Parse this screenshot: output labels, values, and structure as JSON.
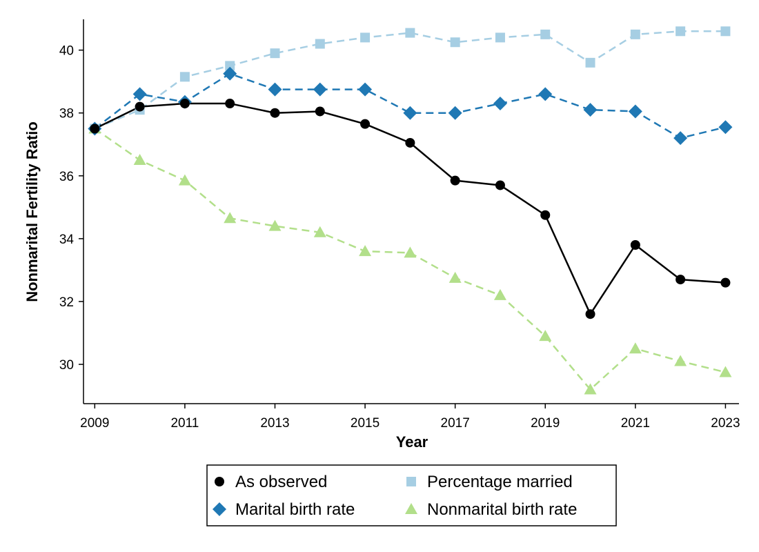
{
  "chart_data": {
    "type": "line",
    "xlabel": "Year",
    "ylabel": "Nonmarital Fertility Ratio",
    "x": [
      2009,
      2010,
      2011,
      2012,
      2013,
      2014,
      2015,
      2016,
      2017,
      2018,
      2019,
      2020,
      2021,
      2022,
      2023
    ],
    "xticks": [
      2009,
      2011,
      2013,
      2015,
      2017,
      2019,
      2021,
      2023
    ],
    "yticks": [
      30,
      32,
      34,
      36,
      38,
      40
    ],
    "xlim": [
      2008.75,
      2023.3
    ],
    "ylim": [
      28.75,
      40.98
    ],
    "grid": false,
    "legend_position": "bottom",
    "series": [
      {
        "name": "As observed",
        "color": "#000000",
        "marker": "circle",
        "line": "solid",
        "values": [
          37.5,
          38.2,
          38.3,
          38.3,
          38.0,
          38.05,
          37.65,
          37.05,
          35.85,
          35.7,
          34.75,
          31.6,
          33.8,
          32.7,
          32.6
        ]
      },
      {
        "name": "Percentage married",
        "color": "#a6cee3",
        "marker": "square",
        "line": "dashed",
        "values": [
          37.5,
          38.1,
          39.15,
          39.5,
          39.9,
          40.2,
          40.4,
          40.55,
          40.25,
          40.4,
          40.5,
          39.6,
          40.5,
          40.6,
          40.6
        ]
      },
      {
        "name": "Marital birth rate",
        "color": "#1f78b4",
        "marker": "diamond",
        "line": "dashed",
        "values": [
          37.5,
          38.6,
          38.35,
          39.25,
          38.75,
          38.75,
          38.75,
          38.0,
          38.0,
          38.3,
          38.6,
          38.1,
          38.05,
          37.2,
          37.55
        ]
      },
      {
        "name": "Nonmarital birth rate",
        "color": "#b2df8a",
        "marker": "triangle",
        "line": "dashed",
        "values": [
          37.5,
          36.5,
          35.85,
          34.65,
          34.4,
          34.2,
          33.6,
          33.55,
          32.75,
          32.2,
          30.9,
          29.2,
          30.5,
          30.1,
          29.75
        ]
      }
    ],
    "legend": {
      "order": [
        0,
        1,
        2,
        3
      ]
    }
  }
}
